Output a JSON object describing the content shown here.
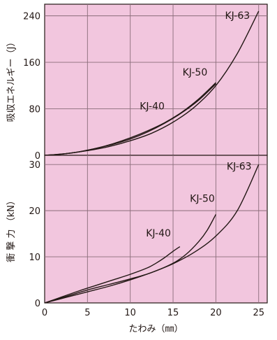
{
  "chart_data": [
    {
      "type": "line",
      "ylabel": "吸収エネルギー（J）",
      "xlim": [
        0,
        26
      ],
      "ylim": [
        0,
        260
      ],
      "y_ticks": [
        "0",
        "80",
        "160",
        "240"
      ],
      "grid": true,
      "background_color": "#f2c6de",
      "line_color": "#231815",
      "series": [
        {
          "name": "KJ-40",
          "x": [
            0,
            2,
            4,
            6,
            8,
            10,
            12,
            14,
            16,
            18,
            20
          ],
          "y": [
            0,
            2,
            6,
            12,
            19,
            28,
            40,
            55,
            73,
            95,
            123
          ]
        },
        {
          "name": "KJ-50",
          "x": [
            0,
            2,
            4,
            6,
            8,
            10,
            12,
            14,
            16,
            18,
            20
          ],
          "y": [
            0,
            2,
            6,
            12,
            20,
            30,
            42,
            56,
            74,
            97,
            125
          ]
        },
        {
          "name": "KJ-63",
          "x": [
            0,
            2.5,
            5,
            7.5,
            10,
            12.5,
            15,
            17.5,
            20,
            22.5,
            25
          ],
          "y": [
            0,
            3,
            8,
            15,
            25,
            38,
            57,
            83,
            120,
            175,
            248
          ]
        }
      ]
    },
    {
      "type": "line",
      "xlabel": "たわみ（㎜）",
      "ylabel": "衝 撃 力 （kN）",
      "xlim": [
        0,
        26
      ],
      "ylim": [
        0,
        32
      ],
      "x_ticks": [
        "0",
        "5",
        "10",
        "15",
        "20",
        "25"
      ],
      "y_ticks": [
        "0",
        "10",
        "20",
        "30"
      ],
      "grid": true,
      "background_color": "#f2c6de",
      "line_color": "#231815",
      "series": [
        {
          "name": "KJ-40",
          "x": [
            0,
            2,
            4,
            6,
            8,
            10,
            12,
            13,
            14,
            15,
            15.8
          ],
          "y": [
            0,
            1.3,
            2.6,
            3.8,
            5.0,
            6.2,
            7.6,
            8.6,
            9.8,
            11.2,
            12.2
          ]
        },
        {
          "name": "KJ-50",
          "x": [
            0,
            2.5,
            5,
            7.5,
            10,
            12.5,
            15,
            16.5,
            18,
            19,
            20
          ],
          "y": [
            0,
            1.4,
            2.8,
            4.0,
            5.2,
            6.6,
            8.6,
            10.5,
            13.3,
            15.8,
            19.2
          ]
        },
        {
          "name": "KJ-63",
          "x": [
            0,
            2.5,
            5,
            7.5,
            10,
            12.5,
            15,
            17.5,
            20,
            22.5,
            25
          ],
          "y": [
            0,
            1.2,
            2.4,
            3.6,
            5.0,
            6.6,
            8.5,
            11.0,
            14.5,
            20.0,
            30.0
          ]
        }
      ]
    }
  ]
}
